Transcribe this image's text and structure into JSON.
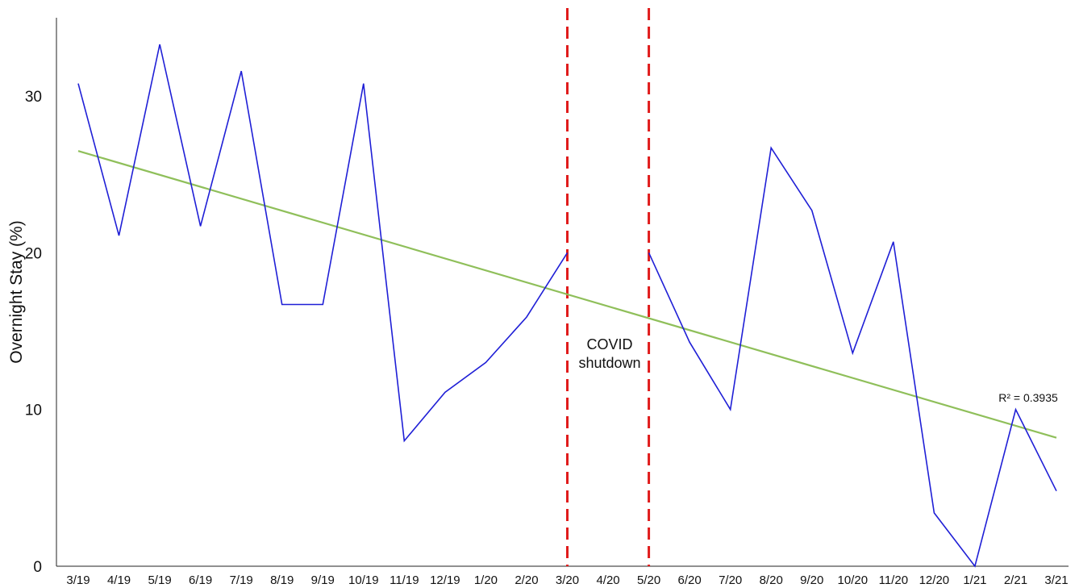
{
  "chart_data": {
    "type": "line",
    "title": "",
    "xlabel": "",
    "ylabel": "Overnight Stay (%)",
    "ylim": [
      0,
      35
    ],
    "yticks": [
      0,
      10,
      20,
      30
    ],
    "grid": false,
    "categories": [
      "3/19",
      "4/19",
      "5/19",
      "6/19",
      "7/19",
      "8/19",
      "9/19",
      "10/19",
      "11/19",
      "12/19",
      "1/20",
      "2/20",
      "3/20",
      "4/20",
      "5/20",
      "6/20",
      "7/20",
      "8/20",
      "9/20",
      "10/20",
      "11/20",
      "12/20",
      "1/21",
      "2/21",
      "3/21"
    ],
    "series": [
      {
        "values": [
          30.8,
          21.1,
          33.3,
          21.7,
          31.6,
          16.7,
          16.7,
          30.8,
          8.0,
          11.1,
          13.0,
          15.9,
          20.0,
          null,
          20.0,
          14.3,
          10.0,
          26.7,
          22.7,
          13.6,
          20.7,
          3.4,
          0.0,
          10.0,
          4.8
        ],
        "color": "#1f1fd6"
      }
    ],
    "trendline": {
      "start": 26.5,
      "end": 8.2,
      "r_squared_label": "R² = 0.3935",
      "color": "#8fbf5a"
    },
    "shutdown_markers": {
      "from": "3/20",
      "to": "5/20",
      "color": "#e01b1b",
      "label_line1": "COVID",
      "label_line2": "shutdown"
    }
  }
}
